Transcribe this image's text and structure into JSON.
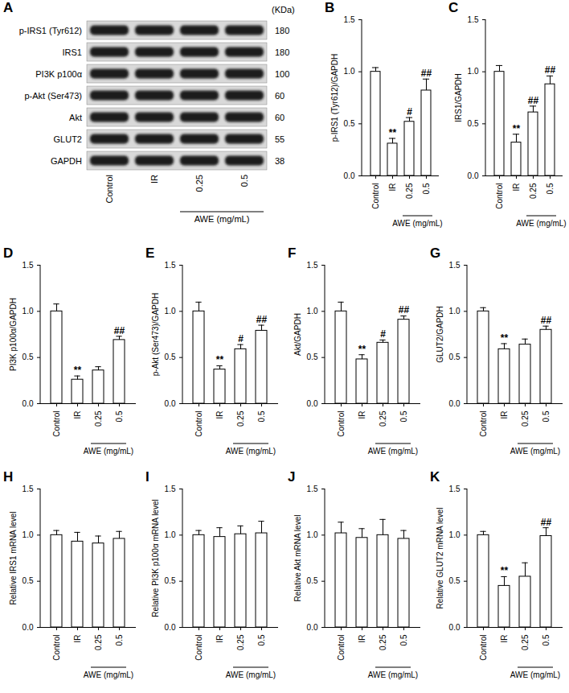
{
  "blot": {
    "panel": "A",
    "unit_label": "(KDa)",
    "lanes": [
      "Control",
      "IR",
      "0.25",
      "0.5"
    ],
    "group_label": "AWE (mg/mL)",
    "group_lanes": [
      "0.25",
      "0.5"
    ],
    "rows": [
      {
        "label": "p-IRS1 (Tyr612)",
        "kda": 180
      },
      {
        "label": "IRS1",
        "kda": 180
      },
      {
        "label": "PI3K p100α",
        "kda": 100
      },
      {
        "label": "p-Akt (Ser473)",
        "kda": 60
      },
      {
        "label": "Akt",
        "kda": 60
      },
      {
        "label": "GLUT2",
        "kda": 55
      },
      {
        "label": "GAPDH",
        "kda": 38
      }
    ]
  },
  "chart_data": [
    {
      "panel": "B",
      "type": "bar",
      "y_label": "p-IRS1 (Tyr612)/GAPDH",
      "categories": [
        "Control",
        "IR",
        "0.25",
        "0.5"
      ],
      "values": [
        1.0,
        0.31,
        0.52,
        0.82
      ],
      "errors": [
        0.04,
        0.05,
        0.04,
        0.11
      ],
      "annotations": [
        null,
        "**",
        "#",
        "##"
      ],
      "color": "#ffffff",
      "grid": false,
      "group_label": "AWE (mg/mL)",
      "group_categories": [
        "0.25",
        "0.5"
      ],
      "ylim": [
        0,
        1.5
      ],
      "yticks": [
        {
          "value": 0,
          "label": "0.0"
        },
        {
          "value": 0.5,
          "label": "0.5"
        },
        {
          "value": 1,
          "label": "1.0"
        },
        {
          "value": 1.5,
          "label": "1.5"
        }
      ]
    },
    {
      "panel": "C",
      "type": "bar",
      "y_label": "IRS1/GAPDH",
      "categories": [
        "Control",
        "IR",
        "0.25",
        "0.5"
      ],
      "values": [
        1.0,
        0.32,
        0.61,
        0.88
      ],
      "errors": [
        0.06,
        0.08,
        0.06,
        0.08
      ],
      "annotations": [
        null,
        "**",
        "##",
        "##"
      ],
      "color": "#ffffff",
      "grid": false,
      "group_label": "AWE (mg/mL)",
      "group_categories": [
        "0.25",
        "0.5"
      ],
      "ylim": [
        0,
        1.5
      ],
      "yticks": [
        {
          "value": 0,
          "label": "0.0"
        },
        {
          "value": 0.5,
          "label": "0.5"
        },
        {
          "value": 1,
          "label": "1.0"
        },
        {
          "value": 1.5,
          "label": "1.5"
        }
      ]
    },
    {
      "panel": "D",
      "type": "bar",
      "y_label": "PI3K p100α/GAPDH",
      "categories": [
        "Control",
        "IR",
        "0.25",
        "0.5"
      ],
      "values": [
        1.0,
        0.26,
        0.36,
        0.69
      ],
      "errors": [
        0.08,
        0.04,
        0.04,
        0.04
      ],
      "annotations": [
        null,
        "**",
        null,
        "##"
      ],
      "color": "#ffffff",
      "grid": false,
      "group_label": "AWE (mg/mL)",
      "group_categories": [
        "0.25",
        "0.5"
      ],
      "ylim": [
        0,
        1.5
      ],
      "yticks": [
        {
          "value": 0,
          "label": "0.0"
        },
        {
          "value": 0.5,
          "label": "0.5"
        },
        {
          "value": 1,
          "label": "1.0"
        },
        {
          "value": 1.5,
          "label": "1.5"
        }
      ]
    },
    {
      "panel": "E",
      "type": "bar",
      "y_label": "p-Akt (Ser473)/GAPDH",
      "categories": [
        "Control",
        "IR",
        "0.25",
        "0.5"
      ],
      "values": [
        1.0,
        0.37,
        0.59,
        0.79
      ],
      "errors": [
        0.1,
        0.04,
        0.05,
        0.06
      ],
      "annotations": [
        null,
        "**",
        "#",
        "##"
      ],
      "color": "#ffffff",
      "grid": false,
      "group_label": "AWE (mg/mL)",
      "group_categories": [
        "0.25",
        "0.5"
      ],
      "ylim": [
        0,
        1.5
      ],
      "yticks": [
        {
          "value": 0,
          "label": "0.0"
        },
        {
          "value": 0.5,
          "label": "0.5"
        },
        {
          "value": 1,
          "label": "1.0"
        },
        {
          "value": 1.5,
          "label": "1.5"
        }
      ]
    },
    {
      "panel": "F",
      "type": "bar",
      "y_label": "Akt/GAPDH",
      "categories": [
        "Control",
        "IR",
        "0.25",
        "0.5"
      ],
      "values": [
        1.0,
        0.48,
        0.66,
        0.91
      ],
      "errors": [
        0.1,
        0.05,
        0.03,
        0.04
      ],
      "annotations": [
        null,
        "**",
        "#",
        "##"
      ],
      "color": "#ffffff",
      "grid": false,
      "group_label": "AWE (mg/mL)",
      "group_categories": [
        "0.25",
        "0.5"
      ],
      "ylim": [
        0,
        1.5
      ],
      "yticks": [
        {
          "value": 0,
          "label": "0.0"
        },
        {
          "value": 0.5,
          "label": "0.5"
        },
        {
          "value": 1,
          "label": "1.0"
        },
        {
          "value": 1.5,
          "label": "1.5"
        }
      ]
    },
    {
      "panel": "G",
      "type": "bar",
      "y_label": "GLUT2/GAPDH",
      "categories": [
        "Control",
        "IR",
        "0.25",
        "0.5"
      ],
      "values": [
        1.0,
        0.59,
        0.64,
        0.8
      ],
      "errors": [
        0.04,
        0.06,
        0.06,
        0.04
      ],
      "annotations": [
        null,
        "**",
        null,
        "##"
      ],
      "color": "#ffffff",
      "grid": false,
      "group_label": "AWE (mg/mL)",
      "group_categories": [
        "0.25",
        "0.5"
      ],
      "ylim": [
        0,
        1.5
      ],
      "yticks": [
        {
          "value": 0,
          "label": "0.0"
        },
        {
          "value": 0.5,
          "label": "0.5"
        },
        {
          "value": 1,
          "label": "1.0"
        },
        {
          "value": 1.5,
          "label": "1.5"
        }
      ]
    },
    {
      "panel": "H",
      "type": "bar",
      "y_label": "Relative IRS1 mRNA level",
      "categories": [
        "Control",
        "IR",
        "0.25",
        "0.5"
      ],
      "values": [
        1.0,
        0.93,
        0.91,
        0.96
      ],
      "errors": [
        0.05,
        0.1,
        0.08,
        0.08
      ],
      "annotations": [
        null,
        null,
        null,
        null
      ],
      "color": "#ffffff",
      "grid": false,
      "group_label": "AWE (mg/mL)",
      "group_categories": [
        "0.25",
        "0.5"
      ],
      "ylim": [
        0,
        1.5
      ],
      "yticks": [
        {
          "value": 0,
          "label": "0.0"
        },
        {
          "value": 0.5,
          "label": "0.5"
        },
        {
          "value": 1,
          "label": "1.0"
        },
        {
          "value": 1.5,
          "label": "1.5"
        }
      ]
    },
    {
      "panel": "I",
      "type": "bar",
      "y_label": "Relative PI3K p100α mRNA level",
      "categories": [
        "Control",
        "IR",
        "0.25",
        "0.5"
      ],
      "values": [
        1.0,
        0.98,
        1.01,
        1.02
      ],
      "errors": [
        0.05,
        0.1,
        0.09,
        0.13
      ],
      "annotations": [
        null,
        null,
        null,
        null
      ],
      "color": "#ffffff",
      "grid": false,
      "group_label": "AWE (mg/mL)",
      "group_categories": [
        "0.25",
        "0.5"
      ],
      "ylim": [
        0,
        1.5
      ],
      "yticks": [
        {
          "value": 0,
          "label": "0.0"
        },
        {
          "value": 0.5,
          "label": "0.5"
        },
        {
          "value": 1,
          "label": "1.0"
        },
        {
          "value": 1.5,
          "label": "1.5"
        }
      ]
    },
    {
      "panel": "J",
      "type": "bar",
      "y_label": "Relative Akt mRNA level",
      "categories": [
        "Control",
        "IR",
        "0.25",
        "0.5"
      ],
      "values": [
        1.02,
        0.97,
        1.0,
        0.96
      ],
      "errors": [
        0.12,
        0.1,
        0.17,
        0.09
      ],
      "annotations": [
        null,
        null,
        null,
        null
      ],
      "color": "#ffffff",
      "grid": false,
      "group_label": "AWE (mg/mL)",
      "group_categories": [
        "0.25",
        "0.5"
      ],
      "ylim": [
        0,
        1.5
      ],
      "yticks": [
        {
          "value": 0,
          "label": "0.0"
        },
        {
          "value": 0.5,
          "label": "0.5"
        },
        {
          "value": 1,
          "label": "1.0"
        },
        {
          "value": 1.5,
          "label": "1.5"
        }
      ]
    },
    {
      "panel": "K",
      "type": "bar",
      "y_label": "Relative GLUT2 mRNA level",
      "categories": [
        "Control",
        "IR",
        "0.25",
        "0.5"
      ],
      "values": [
        1.0,
        0.45,
        0.55,
        0.99
      ],
      "errors": [
        0.04,
        0.1,
        0.15,
        0.09
      ],
      "annotations": [
        null,
        "**",
        null,
        "##"
      ],
      "color": "#ffffff",
      "grid": false,
      "group_label": "AWE (mg/mL)",
      "group_categories": [
        "0.25",
        "0.5"
      ],
      "ylim": [
        0,
        1.5
      ],
      "yticks": [
        {
          "value": 0,
          "label": "0.0"
        },
        {
          "value": 0.5,
          "label": "0.5"
        },
        {
          "value": 1,
          "label": "1.0"
        },
        {
          "value": 1.5,
          "label": "1.5"
        }
      ]
    }
  ]
}
